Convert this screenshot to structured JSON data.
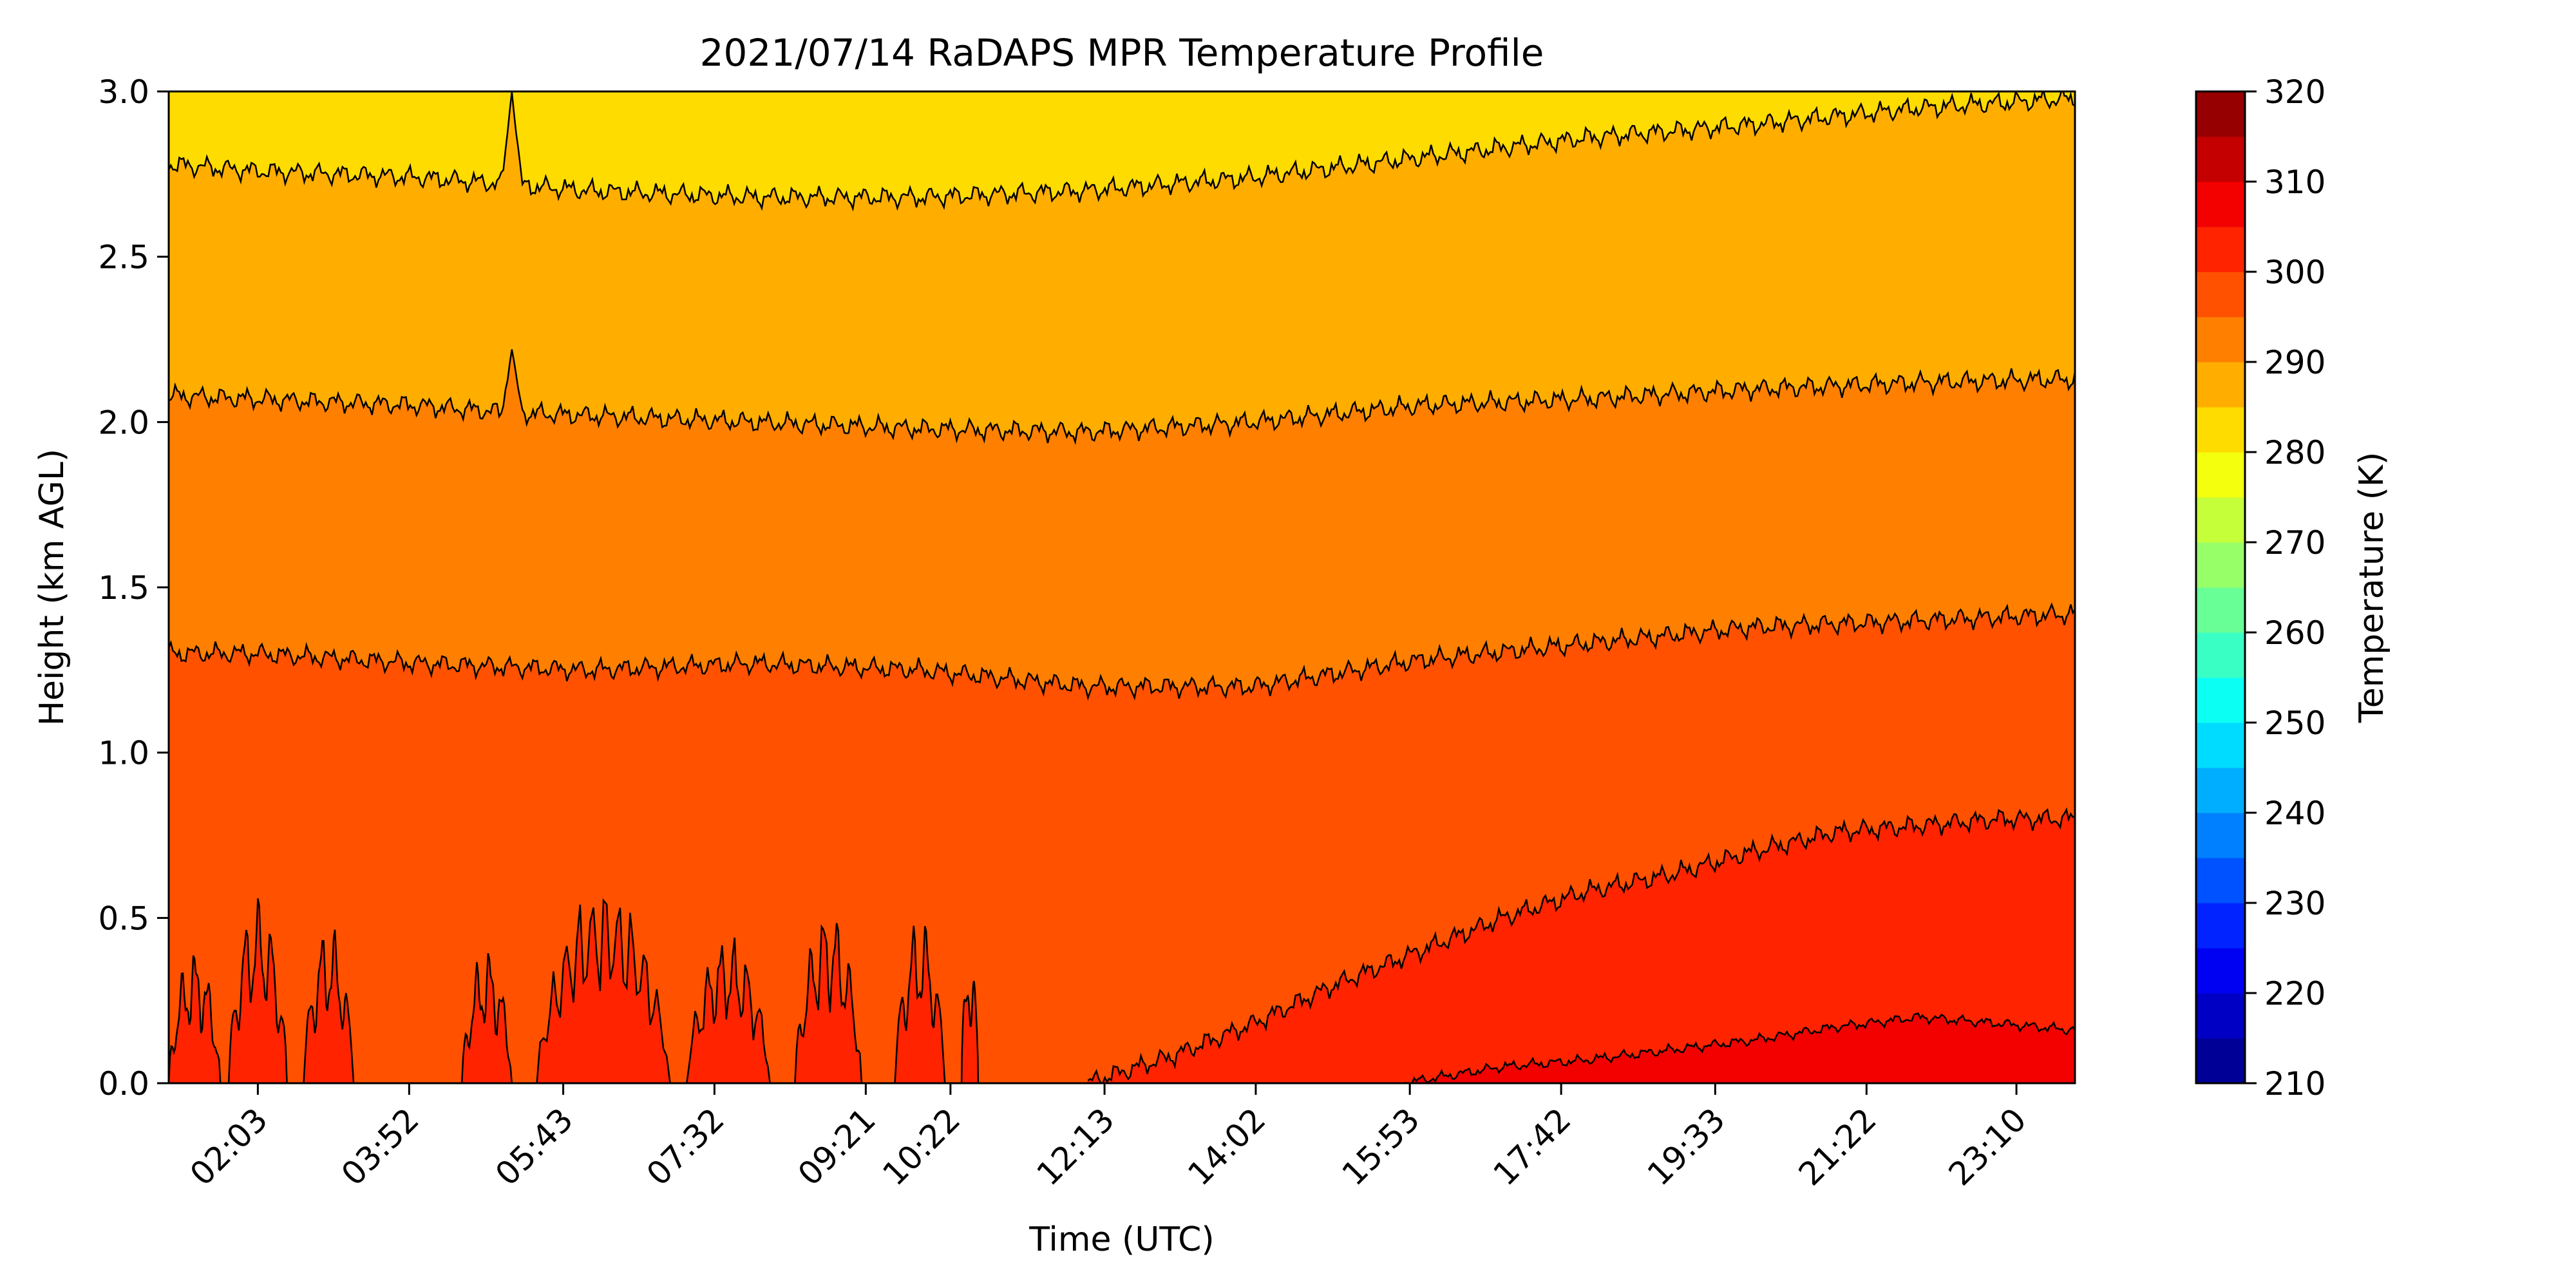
{
  "chart_data": {
    "type": "heatmap",
    "title": "2021/07/14 RaDAPS MPR Temperature Profile",
    "xlabel": "Time (UTC)",
    "ylabel": "Height (km AGL)",
    "x_ticks": [
      "02:03",
      "03:52",
      "05:43",
      "07:32",
      "09:21",
      "10:22",
      "12:13",
      "14:02",
      "15:53",
      "17:42",
      "19:33",
      "21:22",
      "23:10"
    ],
    "x_tick_hours": [
      2.05,
      3.867,
      5.717,
      7.533,
      9.35,
      10.367,
      12.217,
      14.033,
      15.883,
      17.7,
      19.55,
      21.367,
      23.167
    ],
    "xlim_hours": [
      0.98,
      23.87
    ],
    "ylim": [
      0,
      3.0
    ],
    "y_ticks": [
      0.0,
      0.5,
      1.0,
      1.5,
      2.0,
      2.5,
      3.0
    ],
    "colorbar": {
      "label": "Temperature (K)",
      "min": 210,
      "max": 320,
      "step": 5,
      "tick_values": [
        210,
        220,
        230,
        240,
        250,
        260,
        270,
        280,
        290,
        300,
        310,
        320
      ]
    },
    "contour_levels_K": [
      300,
      295,
      290,
      285,
      280
    ],
    "contours": [
      {
        "level": 300,
        "points": [
          [
            12.0,
            0.0
          ],
          [
            13.0,
            0.08
          ],
          [
            14.0,
            0.18
          ],
          [
            15.0,
            0.3
          ],
          [
            16.0,
            0.4
          ],
          [
            17.0,
            0.5
          ],
          [
            18.0,
            0.58
          ],
          [
            19.0,
            0.63
          ],
          [
            20.0,
            0.7
          ],
          [
            21.0,
            0.76
          ],
          [
            22.0,
            0.78
          ],
          [
            23.0,
            0.8
          ],
          [
            23.87,
            0.8
          ]
        ]
      },
      {
        "level": 295,
        "points": [
          [
            0.98,
            1.3
          ],
          [
            2.0,
            1.3
          ],
          [
            4.0,
            1.27
          ],
          [
            6.0,
            1.25
          ],
          [
            8.0,
            1.27
          ],
          [
            10.0,
            1.25
          ],
          [
            12.0,
            1.2
          ],
          [
            14.0,
            1.2
          ],
          [
            16.0,
            1.28
          ],
          [
            18.0,
            1.33
          ],
          [
            20.0,
            1.38
          ],
          [
            22.0,
            1.4
          ],
          [
            23.87,
            1.42
          ]
        ]
      },
      {
        "level": 290,
        "points": [
          [
            0.98,
            2.08
          ],
          [
            2.0,
            2.07
          ],
          [
            4.0,
            2.05
          ],
          [
            5.0,
            2.03
          ],
          [
            6.0,
            2.02
          ],
          [
            8.0,
            2.0
          ],
          [
            10.0,
            1.98
          ],
          [
            12.0,
            1.97
          ],
          [
            14.0,
            2.0
          ],
          [
            16.0,
            2.05
          ],
          [
            18.0,
            2.07
          ],
          [
            20.0,
            2.1
          ],
          [
            22.0,
            2.12
          ],
          [
            23.87,
            2.13
          ]
        ]
      },
      {
        "level": 285,
        "points": [
          [
            0.98,
            2.78
          ],
          [
            2.0,
            2.76
          ],
          [
            4.0,
            2.74
          ],
          [
            6.0,
            2.7
          ],
          [
            8.0,
            2.68
          ],
          [
            10.0,
            2.68
          ],
          [
            12.0,
            2.7
          ],
          [
            14.0,
            2.74
          ],
          [
            16.0,
            2.8
          ],
          [
            18.0,
            2.86
          ],
          [
            20.0,
            2.9
          ],
          [
            22.0,
            2.95
          ],
          [
            23.87,
            2.98
          ]
        ]
      }
    ],
    "surface_contour_305": [
      [
        15.8,
        0.0
      ],
      [
        17.0,
        0.05
      ],
      [
        18.0,
        0.07
      ],
      [
        19.0,
        0.1
      ],
      [
        20.0,
        0.13
      ],
      [
        21.0,
        0.17
      ],
      [
        22.0,
        0.2
      ],
      [
        23.0,
        0.18
      ],
      [
        23.87,
        0.16
      ]
    ],
    "near_surface_patches_300": [
      {
        "t0": 0.98,
        "t1": 1.6,
        "top": 0.38
      },
      {
        "t0": 1.7,
        "t1": 2.4,
        "top": 0.53
      },
      {
        "t0": 2.6,
        "t1": 3.2,
        "top": 0.45
      },
      {
        "t0": 4.5,
        "t1": 5.1,
        "top": 0.38
      },
      {
        "t0": 5.4,
        "t1": 7.0,
        "top": 0.58
      },
      {
        "t0": 7.2,
        "t1": 8.2,
        "top": 0.42
      },
      {
        "t0": 8.5,
        "t1": 9.3,
        "top": 0.5
      },
      {
        "t0": 9.7,
        "t1": 10.3,
        "top": 0.47
      },
      {
        "t0": 10.5,
        "t1": 10.7,
        "top": 0.4
      }
    ],
    "spike": {
      "t": 5.1,
      "width": 0.12,
      "top_285": 3.0,
      "top_290": 2.22
    },
    "grid": false
  },
  "colors": {
    "colormap": "jet",
    "axis": "#000000",
    "contour_line": "#000000"
  }
}
